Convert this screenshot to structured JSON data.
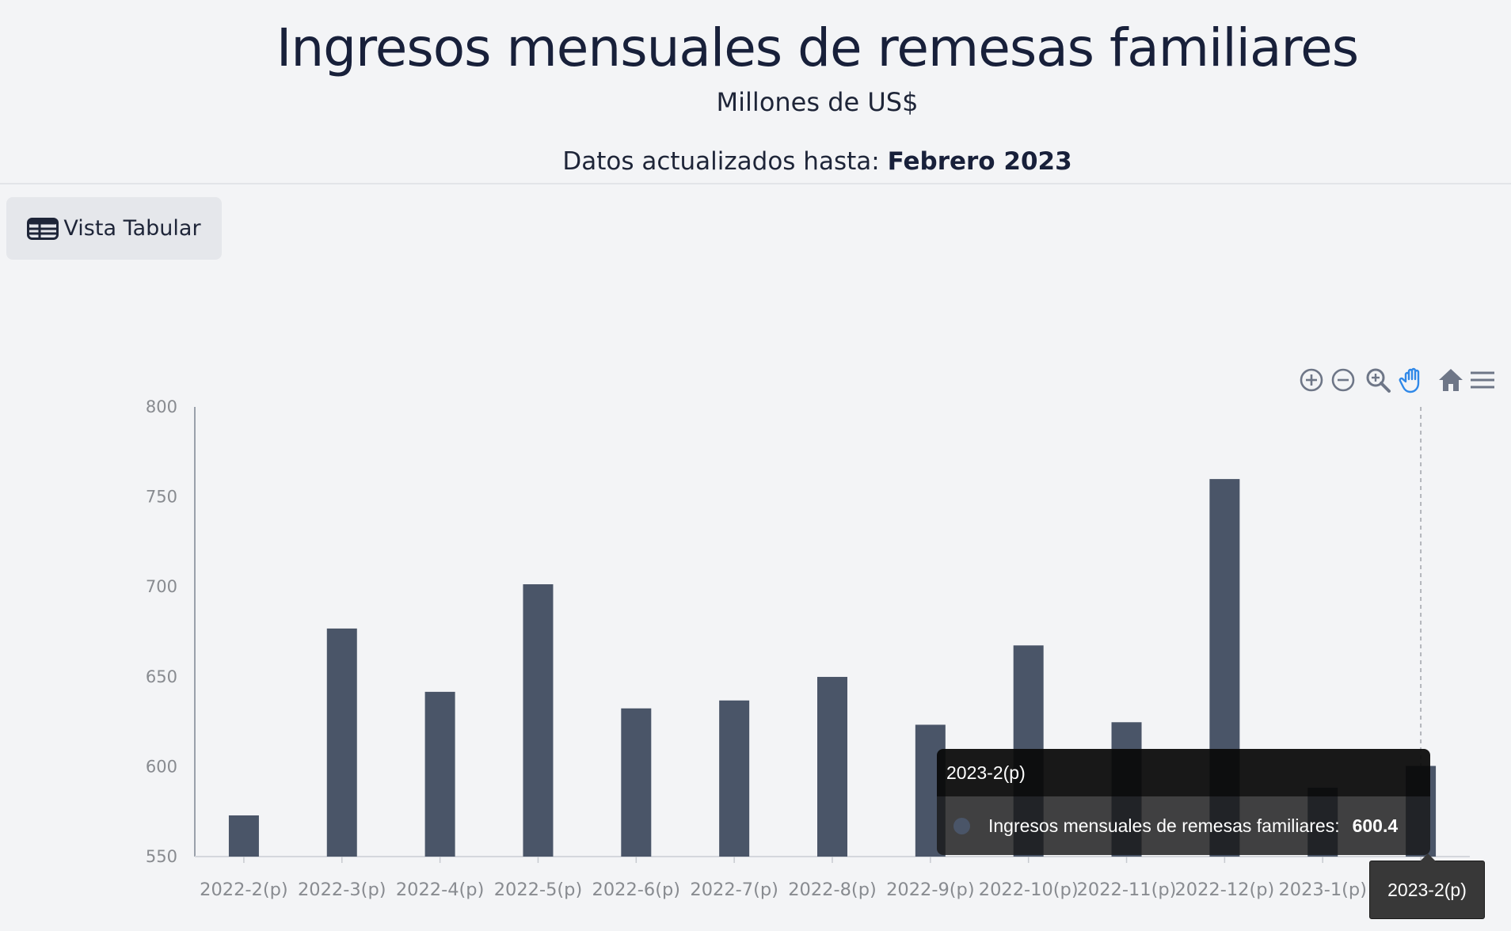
{
  "header": {
    "title": "Ingresos mensuales de remesas familiares",
    "subtitle": "Millones de US$",
    "updated_prefix": "Datos actualizados hasta:",
    "updated_value": "Febrero 2023"
  },
  "toolbar": {
    "tabular_label": "Vista Tabular",
    "icons": [
      "zoom-in-icon",
      "zoom-out-icon",
      "magnifier-icon",
      "pan-hand-icon",
      "home-icon",
      "menu-icon"
    ]
  },
  "colors": {
    "bar": "#4a5568",
    "axis_label": "#888b90",
    "pan_active": "#2f88e8",
    "tool_icon": "#6e7687"
  },
  "tooltip": {
    "category": "2023-2(p)",
    "series_name": "Ingresos mensuales de remesas familiares:",
    "value": "600.4",
    "x_label": "2023-2(p)"
  },
  "chart_data": {
    "type": "bar",
    "title": "Ingresos mensuales de remesas familiares",
    "subtitle": "Millones de US$",
    "xlabel": "",
    "ylabel": "",
    "ylim": [
      550,
      800
    ],
    "yticks": [
      550,
      600,
      650,
      700,
      750,
      800
    ],
    "grid": false,
    "categories": [
      "2022-2(p)",
      "2022-3(p)",
      "2022-4(p)",
      "2022-5(p)",
      "2022-6(p)",
      "2022-7(p)",
      "2022-8(p)",
      "2022-9(p)",
      "2022-10(p)",
      "2022-11(p)",
      "2022-12(p)",
      "2023-1(p)",
      "2023-2(p)"
    ],
    "series": [
      {
        "name": "Ingresos mensuales de remesas familiares",
        "values": [
          572.9,
          676.8,
          641.6,
          701.4,
          632.4,
          636.8,
          649.9,
          623.3,
          667.4,
          624.7,
          759.9,
          588.3,
          600.4
        ]
      }
    ],
    "highlighted_category": "2023-2(p)"
  }
}
